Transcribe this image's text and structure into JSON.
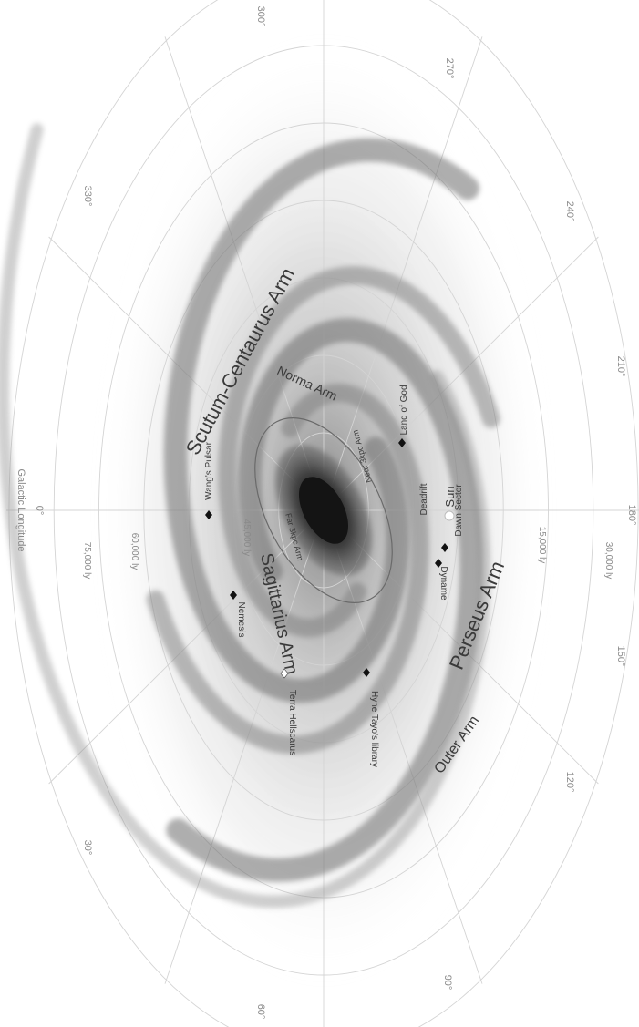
{
  "axis": {
    "title": "Galactic Longitude",
    "longitude_labels": [
      "0°",
      "30°",
      "60°",
      "90°",
      "120°",
      "150°",
      "180°",
      "210°",
      "240°",
      "270°",
      "300°",
      "330°"
    ]
  },
  "distances": [
    "75,000 ly",
    "60,000 ly",
    "45,000 ly",
    "30,000 ly",
    "15,000 ly"
  ],
  "arms": {
    "scutum": "Scutum-Centaurus Arm",
    "norma": "Norma Arm",
    "sagittarius": "Sagittarius Arm",
    "perseus": "Perseus Arm",
    "outer": "Outer Arm",
    "far3k": "Far 3kpc Arm",
    "near3k": "Near 3kpc Arm"
  },
  "places": {
    "sun": "Sun",
    "wang": "Wang's Pulsar",
    "nemesis": "Nemesis",
    "terra": "Terra Hellscarus",
    "hyne": "Hyne Tayo's library",
    "dyname": "Dyname",
    "deadrift": "Deadrift",
    "dawn": "Dawn Sector",
    "land": "Land of God"
  }
}
